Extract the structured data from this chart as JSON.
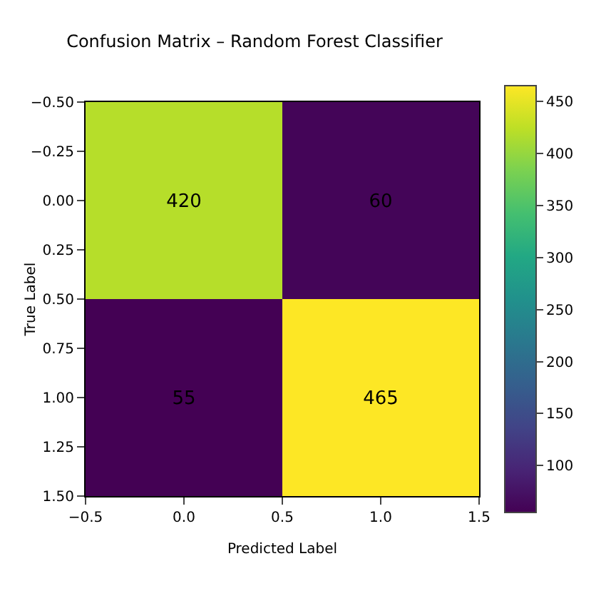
{
  "chart_data": {
    "type": "heatmap",
    "title": "Confusion Matrix – Random Forest Classifier",
    "xlabel": "Predicted Label",
    "ylabel": "True Label",
    "x": [
      0,
      1
    ],
    "y": [
      0,
      1
    ],
    "cells": [
      [
        420,
        60
      ],
      [
        55,
        465
      ]
    ],
    "data_labels": true,
    "xlim": [
      -0.5,
      1.5
    ],
    "xticks": [
      {
        "value": -0.5,
        "label": "−0.5"
      },
      {
        "value": 0,
        "label": "0.0"
      },
      0.5,
      {
        "value": 1,
        "label": "1.0"
      },
      1.5
    ],
    "ylim": [
      1.5,
      -0.5
    ],
    "yticks": [
      {
        "value": -0.5,
        "label": "−0.50"
      },
      {
        "value": -0.25,
        "label": "−0.25"
      },
      {
        "value": 0,
        "label": "0.00"
      },
      0.25,
      {
        "value": 0.5,
        "label": "0.50"
      },
      0.75,
      {
        "value": 1,
        "label": "1.00"
      },
      1.25,
      {
        "value": 1.5,
        "label": "1.50"
      }
    ],
    "clim": [
      55,
      465
    ],
    "cticks": [
      100,
      150,
      200,
      250,
      300,
      350,
      400,
      450
    ]
  }
}
